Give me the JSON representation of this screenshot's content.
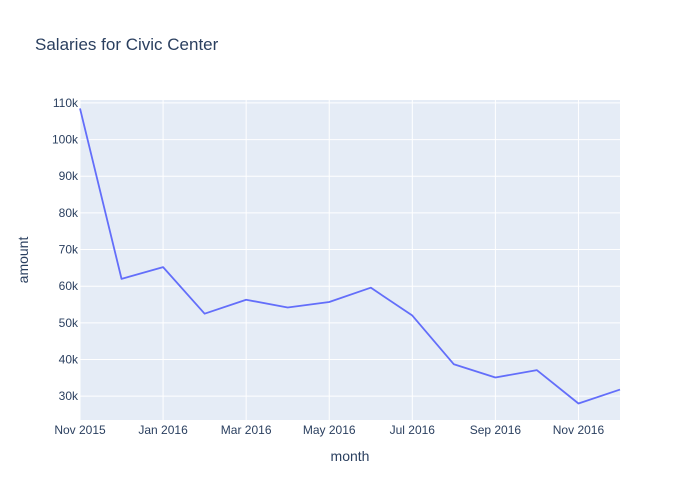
{
  "chart_data": {
    "type": "line",
    "title": "Salaries for Civic Center",
    "xlabel": "month",
    "ylabel": "amount",
    "x": [
      "2015-11",
      "2015-12",
      "2016-01",
      "2016-02",
      "2016-03",
      "2016-04",
      "2016-05",
      "2016-06",
      "2016-07",
      "2016-08",
      "2016-09",
      "2016-10",
      "2016-11",
      "2016-12"
    ],
    "series": [
      {
        "values": [
          108500,
          62000,
          65200,
          52500,
          56300,
          54200,
          55700,
          59600,
          52000,
          38700,
          35100,
          37100,
          28000,
          31800
        ]
      }
    ],
    "x_ticks": [
      {
        "x": "2015-11",
        "label": "Nov 2015"
      },
      {
        "x": "2016-01",
        "label": "Jan 2016"
      },
      {
        "x": "2016-03",
        "label": "Mar 2016"
      },
      {
        "x": "2016-05",
        "label": "May 2016"
      },
      {
        "x": "2016-07",
        "label": "Jul 2016"
      },
      {
        "x": "2016-09",
        "label": "Sep 2016"
      },
      {
        "x": "2016-11",
        "label": "Nov 2016"
      }
    ],
    "y_ticks": [
      {
        "value": 30000,
        "label": "30k"
      },
      {
        "value": 40000,
        "label": "40k"
      },
      {
        "value": 50000,
        "label": "50k"
      },
      {
        "value": 60000,
        "label": "60k"
      },
      {
        "value": 70000,
        "label": "70k"
      },
      {
        "value": 80000,
        "label": "80k"
      },
      {
        "value": 90000,
        "label": "90k"
      },
      {
        "value": 100000,
        "label": "100k"
      },
      {
        "value": 110000,
        "label": "110k"
      }
    ],
    "ylim": [
      23500,
      110800
    ],
    "grid": true,
    "colors": {
      "line": "#636efa",
      "plot_bg": "#e5ecf6",
      "grid": "#ffffff",
      "text": "#2a3f5f"
    }
  }
}
